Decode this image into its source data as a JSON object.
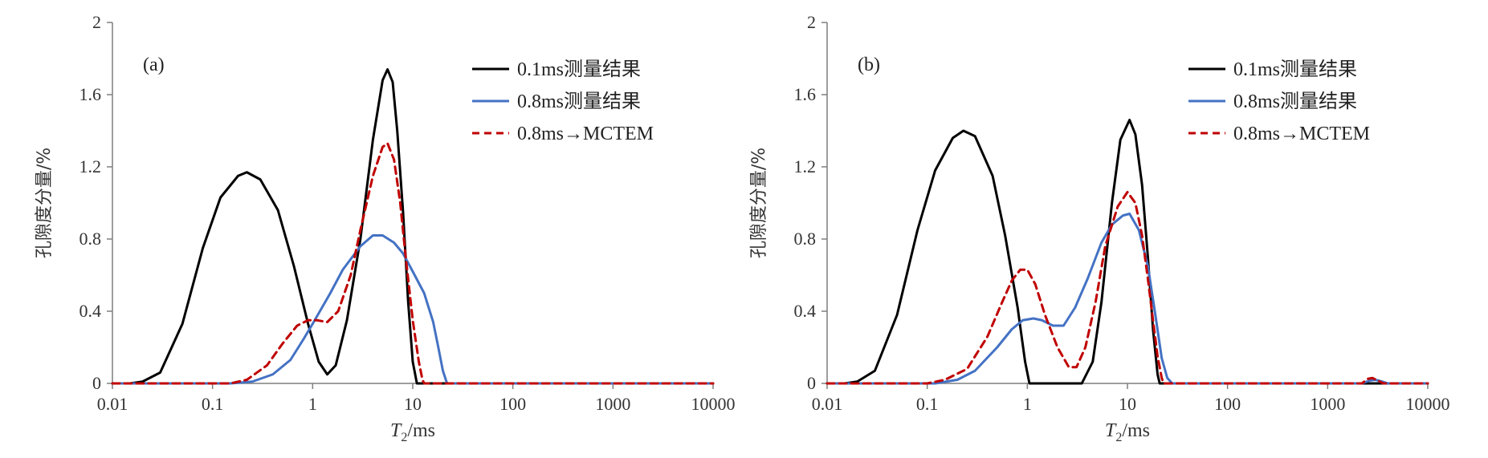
{
  "chart_data": [
    {
      "type": "line",
      "panel_label": "(a)",
      "xlabel_italic": "T",
      "xlabel_sub": "2",
      "xlabel_rest": "/ms",
      "ylabel": "孔隙度分量/%",
      "x_scale": "log",
      "xlim": [
        0.01,
        10000
      ],
      "ylim": [
        0,
        2
      ],
      "x_ticks": [
        0.01,
        0.1,
        1,
        10,
        100,
        1000,
        10000
      ],
      "x_tick_labels": [
        "0.01",
        "0.1",
        "1",
        "10",
        "100",
        "1000",
        "10000"
      ],
      "y_ticks": [
        0,
        0.4,
        0.8,
        1.2,
        1.6,
        2
      ],
      "y_tick_labels": [
        "0",
        "0.4",
        "0.8",
        "1.2",
        "1.6",
        "2"
      ],
      "grid": false,
      "legend_position": "top-right",
      "series": [
        {
          "name": "0.1ms测量结果",
          "color": "#000000",
          "dash": "solid",
          "points": [
            [
              0.01,
              0
            ],
            [
              0.015,
              0.0
            ],
            [
              0.02,
              0.01
            ],
            [
              0.03,
              0.06
            ],
            [
              0.05,
              0.33
            ],
            [
              0.08,
              0.75
            ],
            [
              0.12,
              1.03
            ],
            [
              0.18,
              1.15
            ],
            [
              0.22,
              1.17
            ],
            [
              0.3,
              1.13
            ],
            [
              0.45,
              0.96
            ],
            [
              0.65,
              0.65
            ],
            [
              0.9,
              0.33
            ],
            [
              1.15,
              0.12
            ],
            [
              1.4,
              0.05
            ],
            [
              1.7,
              0.1
            ],
            [
              2.2,
              0.35
            ],
            [
              3,
              0.8
            ],
            [
              4,
              1.35
            ],
            [
              5,
              1.68
            ],
            [
              5.6,
              1.74
            ],
            [
              6.3,
              1.67
            ],
            [
              7,
              1.4
            ],
            [
              8,
              0.95
            ],
            [
              9,
              0.45
            ],
            [
              10,
              0.12
            ],
            [
              11,
              0.0
            ],
            [
              100,
              0
            ],
            [
              10000,
              0
            ]
          ]
        },
        {
          "name": "0.8ms测量结果",
          "color": "#4472C4",
          "dash": "solid",
          "points": [
            [
              0.01,
              0
            ],
            [
              0.15,
              0.0
            ],
            [
              0.25,
              0.01
            ],
            [
              0.4,
              0.05
            ],
            [
              0.6,
              0.13
            ],
            [
              0.8,
              0.24
            ],
            [
              1,
              0.33
            ],
            [
              1.5,
              0.5
            ],
            [
              2,
              0.63
            ],
            [
              3,
              0.76
            ],
            [
              4,
              0.82
            ],
            [
              5,
              0.82
            ],
            [
              6.5,
              0.78
            ],
            [
              8,
              0.72
            ],
            [
              10,
              0.62
            ],
            [
              13,
              0.5
            ],
            [
              16,
              0.34
            ],
            [
              18,
              0.2
            ],
            [
              20,
              0.07
            ],
            [
              22,
              0.0
            ],
            [
              100,
              0
            ],
            [
              10000,
              0
            ]
          ]
        },
        {
          "name": "0.8ms→MCTEM",
          "color": "#C00000",
          "dash": "dashed",
          "points": [
            [
              0.01,
              0
            ],
            [
              0.15,
              0.0
            ],
            [
              0.22,
              0.02
            ],
            [
              0.35,
              0.1
            ],
            [
              0.5,
              0.22
            ],
            [
              0.7,
              0.32
            ],
            [
              0.9,
              0.35
            ],
            [
              1.1,
              0.35
            ],
            [
              1.4,
              0.34
            ],
            [
              1.8,
              0.4
            ],
            [
              2.4,
              0.6
            ],
            [
              3,
              0.85
            ],
            [
              4,
              1.15
            ],
            [
              5,
              1.31
            ],
            [
              5.6,
              1.33
            ],
            [
              6.5,
              1.24
            ],
            [
              7.5,
              1.0
            ],
            [
              8.5,
              0.7
            ],
            [
              10,
              0.35
            ],
            [
              11.5,
              0.12
            ],
            [
              12.5,
              0.02
            ],
            [
              13,
              0.0
            ],
            [
              100,
              0
            ],
            [
              10000,
              0
            ]
          ]
        }
      ]
    },
    {
      "type": "line",
      "panel_label": "(b)",
      "xlabel_italic": "T",
      "xlabel_sub": "2",
      "xlabel_rest": "/ms",
      "ylabel": "孔隙度分量/%",
      "x_scale": "log",
      "xlim": [
        0.01,
        10000
      ],
      "ylim": [
        0,
        2
      ],
      "x_ticks": [
        0.01,
        0.1,
        1,
        10,
        100,
        1000,
        10000
      ],
      "x_tick_labels": [
        "0.01",
        "0.1",
        "1",
        "10",
        "100",
        "1000",
        "10000"
      ],
      "y_ticks": [
        0,
        0.4,
        0.8,
        1.2,
        1.6,
        2
      ],
      "y_tick_labels": [
        "0",
        "0.4",
        "0.8",
        "1.2",
        "1.6",
        "2"
      ],
      "grid": false,
      "legend_position": "top-right",
      "series": [
        {
          "name": "0.1ms测量结果",
          "color": "#000000",
          "dash": "solid",
          "points": [
            [
              0.01,
              0
            ],
            [
              0.015,
              0.0
            ],
            [
              0.02,
              0.01
            ],
            [
              0.03,
              0.07
            ],
            [
              0.05,
              0.38
            ],
            [
              0.08,
              0.85
            ],
            [
              0.12,
              1.18
            ],
            [
              0.18,
              1.36
            ],
            [
              0.23,
              1.4
            ],
            [
              0.3,
              1.37
            ],
            [
              0.45,
              1.15
            ],
            [
              0.6,
              0.82
            ],
            [
              0.8,
              0.42
            ],
            [
              0.95,
              0.12
            ],
            [
              1.05,
              0.0
            ],
            [
              3.5,
              0.0
            ],
            [
              4.5,
              0.12
            ],
            [
              5.5,
              0.45
            ],
            [
              7,
              1.0
            ],
            [
              8.5,
              1.35
            ],
            [
              10.5,
              1.46
            ],
            [
              12,
              1.38
            ],
            [
              14,
              1.1
            ],
            [
              16,
              0.7
            ],
            [
              18,
              0.3
            ],
            [
              20,
              0.05
            ],
            [
              21,
              0.0
            ],
            [
              100,
              0
            ],
            [
              10000,
              0
            ]
          ]
        },
        {
          "name": "0.8ms测量结果",
          "color": "#4472C4",
          "dash": "solid",
          "points": [
            [
              0.01,
              0
            ],
            [
              0.12,
              0.0
            ],
            [
              0.2,
              0.02
            ],
            [
              0.3,
              0.07
            ],
            [
              0.5,
              0.2
            ],
            [
              0.7,
              0.3
            ],
            [
              0.9,
              0.35
            ],
            [
              1.15,
              0.36
            ],
            [
              1.4,
              0.35
            ],
            [
              1.8,
              0.32
            ],
            [
              2.3,
              0.32
            ],
            [
              3,
              0.42
            ],
            [
              4,
              0.58
            ],
            [
              5.5,
              0.78
            ],
            [
              7,
              0.88
            ],
            [
              9,
              0.93
            ],
            [
              10.5,
              0.94
            ],
            [
              13,
              0.85
            ],
            [
              16,
              0.65
            ],
            [
              19,
              0.38
            ],
            [
              22,
              0.14
            ],
            [
              25,
              0.03
            ],
            [
              28,
              0.0
            ],
            [
              2200,
              0.0
            ],
            [
              2600,
              0.015
            ],
            [
              3000,
              0.02
            ],
            [
              3500,
              0.01
            ],
            [
              4000,
              0.0
            ],
            [
              10000,
              0
            ]
          ]
        },
        {
          "name": "0.8ms→MCTEM",
          "color": "#C00000",
          "dash": "dashed",
          "points": [
            [
              0.01,
              0
            ],
            [
              0.1,
              0.0
            ],
            [
              0.15,
              0.02
            ],
            [
              0.25,
              0.08
            ],
            [
              0.4,
              0.26
            ],
            [
              0.55,
              0.44
            ],
            [
              0.7,
              0.57
            ],
            [
              0.85,
              0.63
            ],
            [
              1,
              0.63
            ],
            [
              1.2,
              0.55
            ],
            [
              1.5,
              0.38
            ],
            [
              2,
              0.2
            ],
            [
              2.6,
              0.09
            ],
            [
              3.1,
              0.09
            ],
            [
              3.8,
              0.2
            ],
            [
              4.8,
              0.45
            ],
            [
              6,
              0.76
            ],
            [
              8,
              0.98
            ],
            [
              10,
              1.06
            ],
            [
              12,
              1.0
            ],
            [
              14,
              0.82
            ],
            [
              16,
              0.58
            ],
            [
              18,
              0.35
            ],
            [
              20,
              0.15
            ],
            [
              22,
              0.03
            ],
            [
              23,
              0.0
            ],
            [
              2200,
              0.0
            ],
            [
              2500,
              0.025
            ],
            [
              2800,
              0.03
            ],
            [
              3200,
              0.015
            ],
            [
              3600,
              0.0
            ],
            [
              10000,
              0
            ]
          ]
        }
      ]
    }
  ]
}
